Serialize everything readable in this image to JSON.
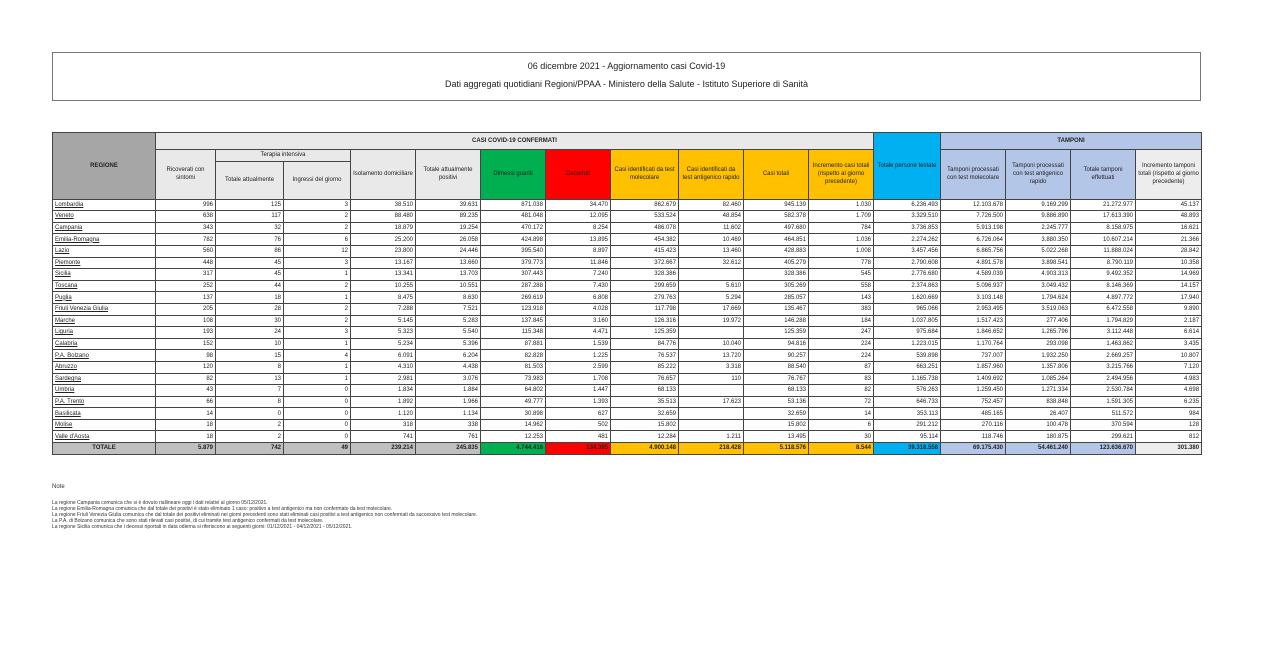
{
  "header": {
    "title": "06 dicembre 2021 - Aggiornamento casi Covid-19",
    "subtitle": "Dati aggregati quotidiani Regioni/PPAA - Ministero della Salute - Istituto Superiore di Sanità"
  },
  "table": {
    "group_confermati": "CASI COVID-19 CONFERMATI",
    "group_tamponi": "TAMPONI",
    "group_ti": "Terapia intensiva",
    "headers": [
      "REGIONE",
      "Ricoverati con sintomi",
      "Totale attualmente",
      "Ingressi del giorno",
      "Isolamento domiciliare",
      "Totale attualmente positivi",
      "Dimessi guariti",
      "Deceduti",
      "Casi identificati da test molecolare",
      "Casi identificati da test antigenico rapido",
      "Casi totali",
      "Incremento casi totali (rispetto al giorno precedente)",
      "Totale persone testate",
      "Tamponi processati con test molecolare",
      "Tamponi processati con test antigenico rapido",
      "Totale tamponi effettuati",
      "Incremento tamponi totali (rispetto al giorno precedente)"
    ],
    "rows": [
      [
        "Lombardia",
        "996",
        "125",
        "3",
        "38.510",
        "39.631",
        "871.038",
        "34.470",
        "862.679",
        "82.460",
        "945.139",
        "1.030",
        "6.236.493",
        "12.103.678",
        "9.169.299",
        "21.272.977",
        "45.137"
      ],
      [
        "Veneto",
        "638",
        "117",
        "2",
        "88.480",
        "89.235",
        "481.048",
        "12.095",
        "533.524",
        "48.854",
        "582.378",
        "1.709",
        "3.329.510",
        "7.726.500",
        "9.886.890",
        "17.613.390",
        "48.893"
      ],
      [
        "Campania",
        "343",
        "32",
        "2",
        "18.879",
        "19.254",
        "470.172",
        "8.254",
        "486.078",
        "11.602",
        "497.680",
        "784",
        "3.736.853",
        "5.913.198",
        "2.245.777",
        "8.158.975",
        "16.621"
      ],
      [
        "Emilia-Romagna",
        "782",
        "76",
        "6",
        "25.200",
        "26.058",
        "424.898",
        "13.895",
        "454.382",
        "10.469",
        "464.851",
        "1.036",
        "2.274.262",
        "6.726.064",
        "3.880.350",
        "10.607.214",
        "21.366"
      ],
      [
        "Lazio",
        "560",
        "86",
        "12",
        "23.800",
        "24.446",
        "395.540",
        "8.897",
        "415.423",
        "13.460",
        "428.883",
        "1.008",
        "3.457.456",
        "6.865.756",
        "5.022.268",
        "11.888.024",
        "28.842"
      ],
      [
        "Piemonte",
        "448",
        "45",
        "3",
        "13.167",
        "13.660",
        "379.773",
        "11.846",
        "372.667",
        "32.612",
        "405.279",
        "778",
        "2.790.608",
        "4.891.578",
        "3.898.541",
        "8.790.119",
        "10.358"
      ],
      [
        "Sicilia",
        "317",
        "45",
        "1",
        "13.341",
        "13.703",
        "307.443",
        "7.240",
        "328.386",
        "",
        "328.386",
        "545",
        "2.776.680",
        "4.589.039",
        "4.903.313",
        "9.492.352",
        "14.969"
      ],
      [
        "Toscana",
        "252",
        "44",
        "2",
        "10.255",
        "10.551",
        "287.288",
        "7.430",
        "299.659",
        "5.610",
        "305.269",
        "558",
        "2.374.863",
        "5.096.937",
        "3.049.432",
        "8.146.369",
        "14.157"
      ],
      [
        "Puglia",
        "137",
        "18",
        "1",
        "8.475",
        "8.630",
        "269.619",
        "6.808",
        "279.763",
        "5.294",
        "285.057",
        "143",
        "1.620.669",
        "3.103.148",
        "1.794.624",
        "4.897.772",
        "17.940"
      ],
      [
        "Friuli Venezia Giulia",
        "205",
        "28",
        "2",
        "7.288",
        "7.521",
        "123.918",
        "4.028",
        "117.798",
        "17.669",
        "135.467",
        "383",
        "965.066",
        "2.953.495",
        "3.519.063",
        "6.472.558",
        "9.890"
      ],
      [
        "Marche",
        "108",
        "30",
        "2",
        "5.145",
        "5.283",
        "137.845",
        "3.160",
        "126.316",
        "19.972",
        "146.288",
        "184",
        "1.037.805",
        "1.517.423",
        "277.406",
        "1.794.829",
        "2.187"
      ],
      [
        "Liguria",
        "193",
        "24",
        "3",
        "5.323",
        "5.540",
        "115.348",
        "4.471",
        "125.359",
        "",
        "125.359",
        "247",
        "975.684",
        "1.846.652",
        "1.265.796",
        "3.112.448",
        "6.614"
      ],
      [
        "Calabria",
        "152",
        "10",
        "1",
        "5.234",
        "5.396",
        "87.881",
        "1.539",
        "84.776",
        "10.040",
        "94.816",
        "224",
        "1.223.015",
        "1.170.764",
        "293.098",
        "1.463.862",
        "3.435"
      ],
      [
        "P.A. Bolzano",
        "98",
        "15",
        "4",
        "6.091",
        "6.204",
        "82.828",
        "1.225",
        "76.537",
        "13.720",
        "90.257",
        "224",
        "539.898",
        "737.007",
        "1.932.250",
        "2.669.257",
        "10.807"
      ],
      [
        "Abruzzo",
        "120",
        "8",
        "1",
        "4.310",
        "4.438",
        "81.503",
        "2.599",
        "85.222",
        "3.318",
        "88.540",
        "87",
        "663.251",
        "1.857.960",
        "1.357.806",
        "3.215.766",
        "7.120"
      ],
      [
        "Sardegna",
        "82",
        "13",
        "1",
        "2.981",
        "3.076",
        "73.983",
        "1.708",
        "76.657",
        "110",
        "76.767",
        "83",
        "1.165.738",
        "1.409.692",
        "1.085.264",
        "2.494.956",
        "4.983"
      ],
      [
        "Umbria",
        "43",
        "7",
        "0",
        "1.834",
        "1.884",
        "64.802",
        "1.447",
        "68.133",
        "",
        "68.133",
        "82",
        "576.263",
        "1.259.450",
        "1.271.334",
        "2.530.784",
        "4.698"
      ],
      [
        "P.A. Trento",
        "66",
        "8",
        "0",
        "1.892",
        "1.966",
        "49.777",
        "1.393",
        "35.513",
        "17.623",
        "53.136",
        "72",
        "646.733",
        "752.457",
        "838.848",
        "1.591.305",
        "6.235"
      ],
      [
        "Basilicata",
        "14",
        "0",
        "0",
        "1.120",
        "1.134",
        "30.898",
        "627",
        "32.659",
        "",
        "32.659",
        "14",
        "353.113",
        "485.165",
        "26.407",
        "511.572",
        "984"
      ],
      [
        "Molise",
        "18",
        "2",
        "0",
        "318",
        "338",
        "14.962",
        "502",
        "15.802",
        "",
        "15.802",
        "6",
        "291.212",
        "270.116",
        "100.478",
        "370.594",
        "128"
      ],
      [
        "Valle d'Aosta",
        "18",
        "2",
        "0",
        "741",
        "761",
        "12.253",
        "481",
        "12.284",
        "1.211",
        "13.495",
        "30",
        "95.114",
        "118.746",
        "180.875",
        "299.621",
        "812"
      ]
    ],
    "total": [
      "TOTALE",
      "5.879",
      "742",
      "49",
      "239.214",
      "245.835",
      "4.744.416",
      "134.395",
      "4.900.148",
      "218.428",
      "5.118.576",
      "8.544",
      "39.318.558",
      "69.175.430",
      "54.461.240",
      "123.636.670",
      "301.380"
    ]
  },
  "notes": {
    "title": "Note",
    "lines": [
      "La regione Campania comunica che si è dovuto riallineare oggi i dati relativi al giorno 05/12/2021.",
      "La regione Emilia-Romagna comunica che dal totale dei positivi è stato eliminato 1 caso: positivo a test antigenico ma non confermato da test molecolare.",
      "La regione Friuli Venezia Giulia comunica che dal totale dei positivi eliminati nei giorni precedenti sono stati eliminati casi positivi a test antigenico non confermati da successivo test molecolare.",
      "La P.A. di Bolzano comunica che sono stati rilevati casi positivi, di cui tramite test antigenico confermati da test molecolare.",
      "La regione Sicilia comunica che i decessi riportati in data odierna si riferiscono ai seguenti giorni: 01/12/2021 - 04/12/2021 - 05/12/2021."
    ]
  },
  "colors": {
    "guariti": "#00b050",
    "deceduti": "#ff0000",
    "casi": "#ffc000",
    "persone_testate": "#00b0f0",
    "tamponi": "#b4c6e7"
  }
}
